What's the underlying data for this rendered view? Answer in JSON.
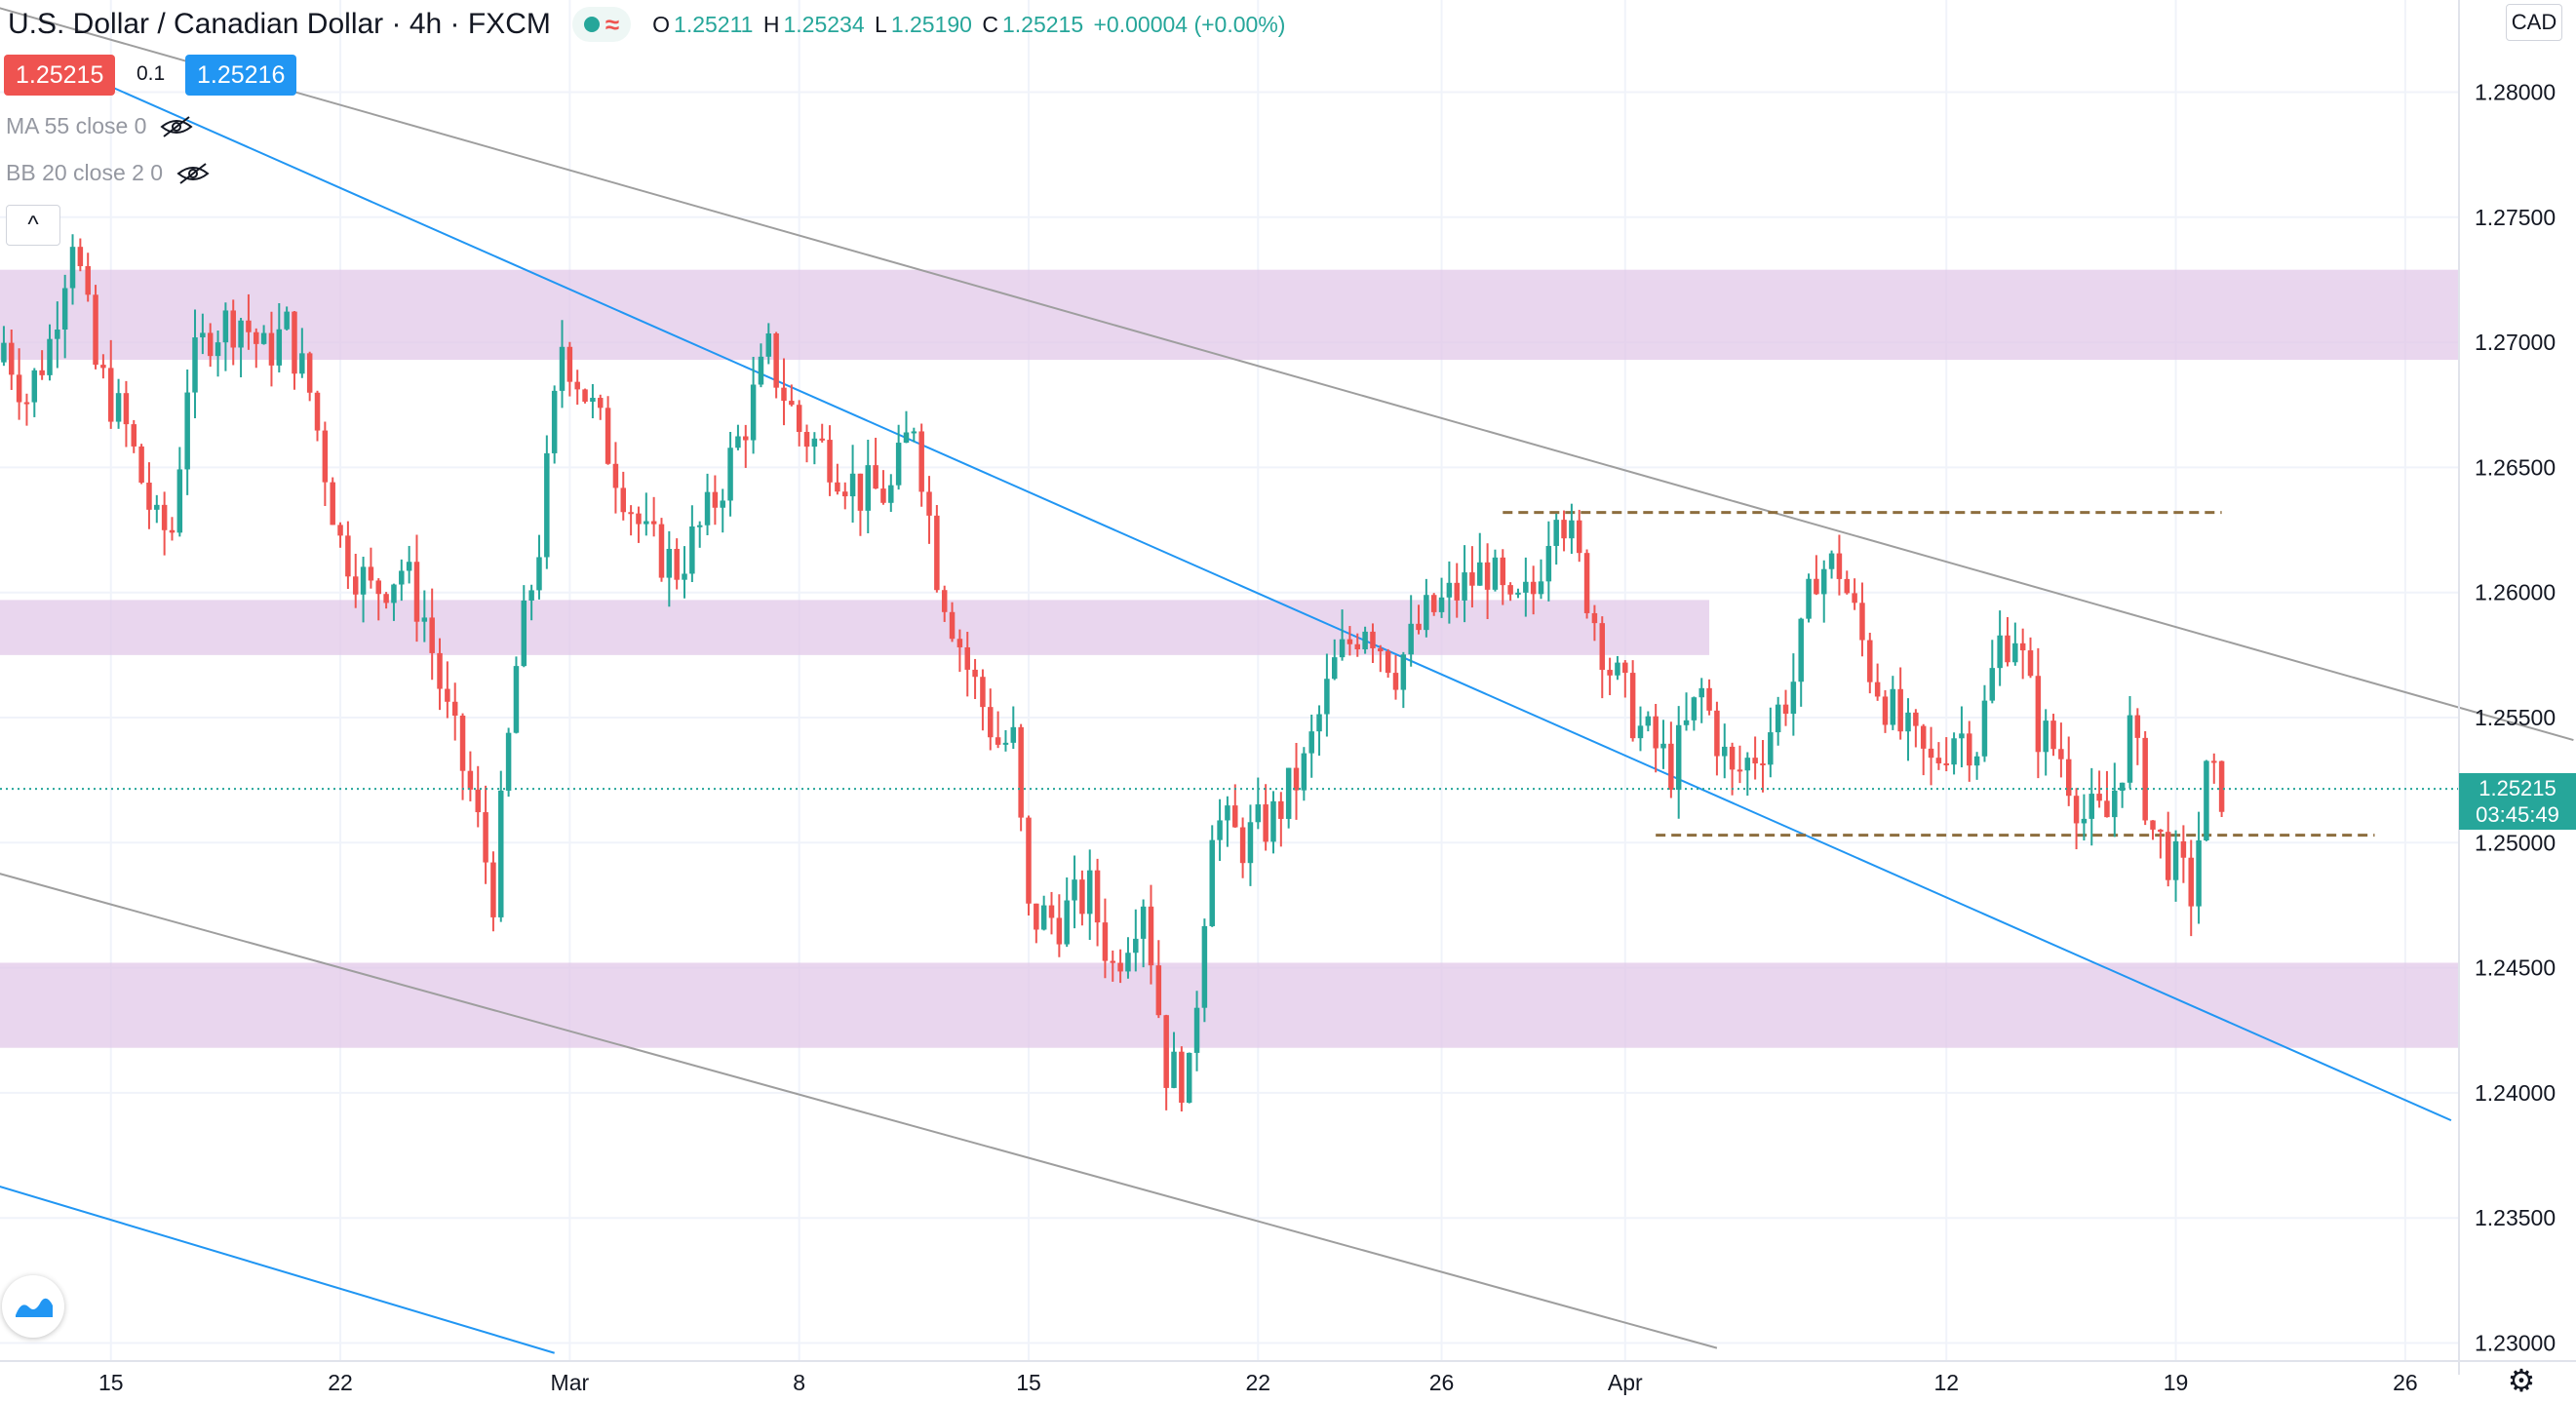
{
  "header": {
    "symbol": "U.S. Dollar / Canadian Dollar · 4h · FXCM",
    "ohlc": {
      "o_label": "O",
      "o": "1.25211",
      "h_label": "H",
      "h": "1.25234",
      "l_label": "L",
      "l": "1.25190",
      "c_label": "C",
      "c": "1.25215",
      "change": "+0.00004 (+0.00%)"
    }
  },
  "trade": {
    "sell": "1.25215",
    "spread": "0.1",
    "buy": "1.25216"
  },
  "indicators": [
    {
      "label": "MA 55 close 0",
      "icon": "eye-hidden-icon"
    },
    {
      "label": "BB 20 close 2 0",
      "icon": "eye-hidden-icon"
    }
  ],
  "currency": "CAD",
  "last_price": {
    "value": "1.25215",
    "countdown": "03:45:49"
  },
  "colors": {
    "up": "#26a69a",
    "down": "#ef5350",
    "zone": "#e1c8e8",
    "trend_blue": "#2196f3",
    "trend_gray": "#9e9e9e",
    "level": "#8d6e3f",
    "sell_bg": "#ef5350",
    "buy_bg": "#2196f3"
  },
  "chart_data": {
    "type": "candlestick",
    "interval": "4h",
    "y_axis": {
      "ticks": [
        1.28,
        1.275,
        1.27,
        1.265,
        1.26,
        1.255,
        1.25,
        1.245,
        1.24,
        1.235,
        1.23
      ],
      "tick_labels": [
        "1.28000",
        "1.27500",
        "1.27000",
        "1.26500",
        "1.26000",
        "1.25500",
        "1.25000",
        "1.24500",
        "1.24000",
        "1.23500",
        "1.23000"
      ],
      "range": [
        1.2295,
        1.2835
      ]
    },
    "x_axis": {
      "tick_labels": [
        "15",
        "22",
        "Mar",
        "8",
        "15",
        "22",
        "26",
        "Apr",
        "12",
        "19",
        "26"
      ],
      "tick_bar_index": [
        14,
        44,
        74,
        104,
        134,
        164,
        188,
        212,
        254,
        284,
        314
      ]
    },
    "supply_demand_zones": [
      {
        "low": 1.2693,
        "high": 1.2729
      },
      {
        "low": 1.2575,
        "high": 1.2597
      },
      {
        "low": 1.2418,
        "high": 1.2452
      }
    ],
    "horizontal_levels": [
      {
        "price": 1.2632,
        "from_index": 196,
        "to_index": 290
      },
      {
        "price": 1.2503,
        "from_index": 216,
        "to_index": 310
      }
    ],
    "trend_lines": [
      {
        "color": "gray",
        "from": {
          "index": -1,
          "price": 1.2834
        },
        "to": {
          "index": 336,
          "price": 1.2541
        }
      },
      {
        "color": "blue",
        "from": {
          "index": 6,
          "price": 1.2813
        },
        "to": {
          "index": 320,
          "price": 1.2389
        }
      },
      {
        "color": "gray",
        "from": {
          "index": -1,
          "price": 1.2488
        },
        "to": {
          "index": 224,
          "price": 1.2298
        }
      },
      {
        "color": "blue",
        "from": {
          "index": -1,
          "price": 1.2363
        },
        "to": {
          "index": 72,
          "price": 1.2296
        }
      }
    ],
    "candle_path": [
      [
        0,
        1.27
      ],
      [
        3,
        1.2678
      ],
      [
        6,
        1.27
      ],
      [
        9,
        1.2745
      ],
      [
        12,
        1.269
      ],
      [
        16,
        1.2665
      ],
      [
        20,
        1.2625
      ],
      [
        22,
        1.2625
      ],
      [
        24,
        1.2685
      ],
      [
        27,
        1.2705
      ],
      [
        31,
        1.271
      ],
      [
        34,
        1.2695
      ],
      [
        37,
        1.2705
      ],
      [
        40,
        1.268
      ],
      [
        44,
        1.262
      ],
      [
        48,
        1.26
      ],
      [
        52,
        1.261
      ],
      [
        55,
        1.259
      ],
      [
        58,
        1.255
      ],
      [
        61,
        1.252
      ],
      [
        64,
        1.248
      ],
      [
        67,
        1.257
      ],
      [
        70,
        1.262
      ],
      [
        73,
        1.27
      ],
      [
        76,
        1.268
      ],
      [
        80,
        1.265
      ],
      [
        84,
        1.262
      ],
      [
        88,
        1.261
      ],
      [
        92,
        1.263
      ],
      [
        96,
        1.266
      ],
      [
        100,
        1.2695
      ],
      [
        104,
        1.2665
      ],
      [
        108,
        1.2655
      ],
      [
        112,
        1.264
      ],
      [
        116,
        1.264
      ],
      [
        119,
        1.267
      ],
      [
        122,
        1.261
      ],
      [
        126,
        1.257
      ],
      [
        130,
        1.254
      ],
      [
        132,
        1.254
      ],
      [
        134,
        1.247
      ],
      [
        138,
        1.247
      ],
      [
        142,
        1.248
      ],
      [
        145,
        1.245
      ],
      [
        149,
        1.248
      ],
      [
        152,
        1.241
      ],
      [
        155,
        1.2405
      ],
      [
        158,
        1.251
      ],
      [
        162,
        1.25
      ],
      [
        166,
        1.251
      ],
      [
        170,
        1.253
      ],
      [
        174,
        1.257
      ],
      [
        178,
        1.259
      ],
      [
        182,
        1.257
      ],
      [
        186,
        1.259
      ],
      [
        190,
        1.26
      ],
      [
        194,
        1.261
      ],
      [
        197,
        1.259
      ],
      [
        200,
        1.26
      ],
      [
        203,
        1.264
      ],
      [
        206,
        1.261
      ],
      [
        210,
        1.257
      ],
      [
        214,
        1.2545
      ],
      [
        218,
        1.253
      ],
      [
        222,
        1.256
      ],
      [
        226,
        1.2525
      ],
      [
        230,
        1.254
      ],
      [
        234,
        1.2565
      ],
      [
        237,
        1.261
      ],
      [
        240,
        1.261
      ],
      [
        244,
        1.257
      ],
      [
        248,
        1.2545
      ],
      [
        252,
        1.253
      ],
      [
        255,
        1.2545
      ],
      [
        258,
        1.254
      ],
      [
        261,
        1.258
      ],
      [
        263,
        1.2585
      ],
      [
        266,
        1.2545
      ],
      [
        269,
        1.2535
      ],
      [
        272,
        1.251
      ],
      [
        275,
        1.251
      ],
      [
        278,
        1.2545
      ],
      [
        281,
        1.2505
      ],
      [
        284,
        1.249
      ],
      [
        286,
        1.248
      ],
      [
        288,
        1.2525
      ],
      [
        290,
        1.2521
      ]
    ],
    "visible_extremes": {
      "high": 1.2767,
      "low": 1.2365
    }
  }
}
